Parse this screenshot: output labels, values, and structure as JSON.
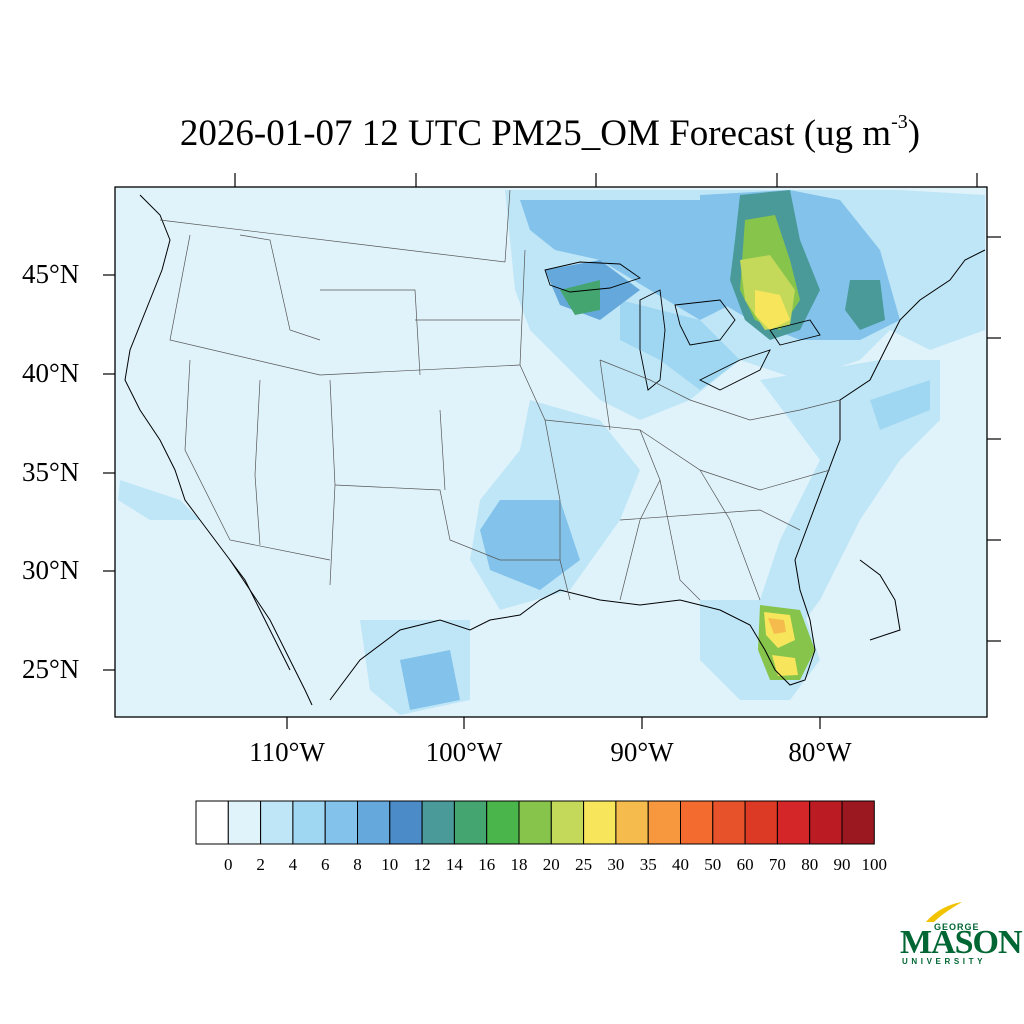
{
  "title": {
    "main": "2026-01-07 12 UTC PM25_OM Forecast (ug m",
    "exponent": "-3",
    "close": ")"
  },
  "latitude_labels": [
    "45°N",
    "40°N",
    "35°N",
    "30°N",
    "25°N"
  ],
  "longitude_labels": [
    "110°W",
    "100°W",
    "90°W",
    "80°W"
  ],
  "colorbar": {
    "labels": [
      "0",
      "2",
      "4",
      "6",
      "8",
      "10",
      "12",
      "14",
      "16",
      "18",
      "20",
      "25",
      "30",
      "35",
      "40",
      "50",
      "60",
      "70",
      "80",
      "90",
      "100"
    ],
    "colors": [
      "#ffffff",
      "#e0f3fb",
      "#bfe6f7",
      "#9fd7f3",
      "#82c2eb",
      "#65a8dc",
      "#4a8bc8",
      "#4a9a9a",
      "#44a570",
      "#4ab54a",
      "#86c44c",
      "#c4d85a",
      "#f7e65c",
      "#f5bb4c",
      "#f7973e",
      "#f46b2f",
      "#e8522b",
      "#dd3a26",
      "#d42629",
      "#bb1c24",
      "#9c1820"
    ]
  },
  "logo": {
    "top_text": "GEORGE",
    "main_text": "MASON",
    "bottom_text": "UNIVERSITY",
    "color": "#006633"
  }
}
